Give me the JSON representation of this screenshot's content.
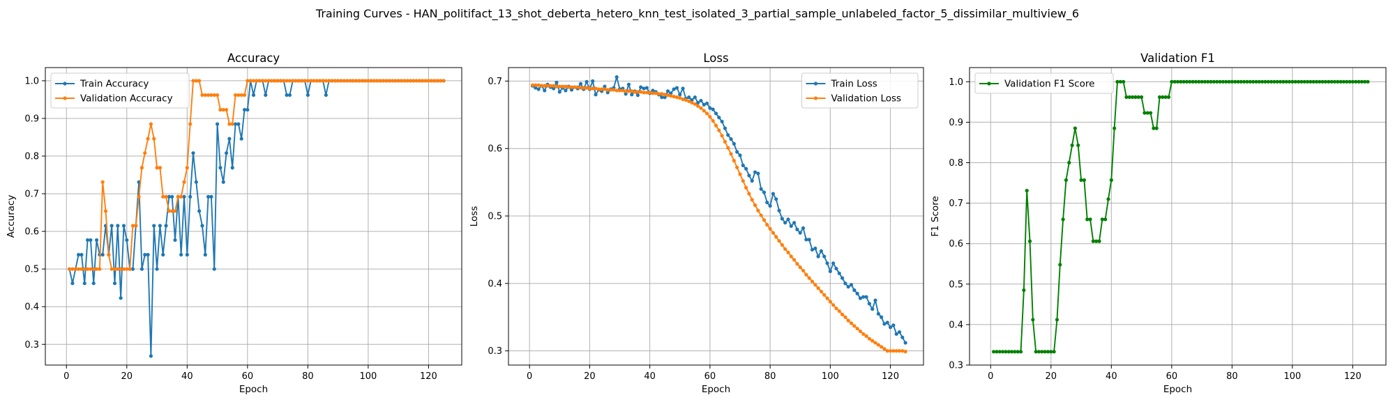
{
  "figure_title": "Training Curves - HAN_politifact_13_shot_deberta_hetero_knn_test_isolated_3_partial_sample_unlabeled_factor_5_dissimilar_multiview_6",
  "chart_data": [
    {
      "type": "line",
      "title": "Accuracy",
      "xlabel": "Epoch",
      "ylabel": "Accuracy",
      "xlim": [
        -7,
        131
      ],
      "ylim": [
        0.245,
        1.035
      ],
      "xticks": [
        0,
        20,
        40,
        60,
        80,
        100,
        120
      ],
      "yticks": [
        0.3,
        0.4,
        0.5,
        0.6,
        0.7,
        0.8,
        0.9,
        1.0
      ],
      "grid": true,
      "legend_position": "upper-left",
      "series": [
        {
          "name": "Train Accuracy",
          "color": "#1f77b4",
          "x_start": 1,
          "values": [
            0.5,
            0.462,
            0.5,
            0.538,
            0.538,
            0.462,
            0.577,
            0.577,
            0.462,
            0.577,
            0.538,
            0.538,
            0.615,
            0.538,
            0.615,
            0.462,
            0.615,
            0.423,
            0.615,
            0.577,
            0.5,
            0.5,
            0.615,
            0.731,
            0.5,
            0.538,
            0.538,
            0.269,
            0.615,
            0.5,
            0.615,
            0.538,
            0.615,
            0.692,
            0.692,
            0.577,
            0.692,
            0.538,
            0.692,
            0.538,
            0.692,
            0.808,
            0.731,
            0.654,
            0.615,
            0.538,
            0.692,
            0.692,
            0.5,
            0.885,
            0.769,
            0.731,
            0.808,
            0.846,
            0.769,
            0.885,
            0.885,
            0.846,
            0.923,
            0.923,
            1.0,
            0.962,
            1.0,
            1.0,
            1.0,
            0.962,
            1.0,
            1.0,
            1.0,
            1.0,
            1.0,
            1.0,
            0.962,
            0.962,
            1.0,
            1.0,
            1.0,
            1.0,
            1.0,
            0.962,
            1.0,
            1.0,
            1.0,
            1.0,
            1.0,
            0.962,
            1.0,
            1.0,
            1.0,
            1.0,
            1.0,
            1.0,
            1.0,
            1.0,
            1.0,
            1.0,
            1.0,
            1.0,
            1.0,
            1.0,
            1.0,
            1.0,
            1.0,
            1.0,
            1.0,
            1.0,
            1.0,
            1.0,
            1.0,
            1.0,
            1.0,
            1.0,
            1.0,
            1.0,
            1.0,
            1.0,
            1.0,
            1.0,
            1.0,
            1.0,
            1.0,
            1.0,
            1.0,
            1.0,
            1.0
          ]
        },
        {
          "name": "Validation Accuracy",
          "color": "#ff7f0e",
          "x_start": 1,
          "values": [
            0.5,
            0.5,
            0.5,
            0.5,
            0.5,
            0.5,
            0.5,
            0.5,
            0.5,
            0.5,
            0.5,
            0.731,
            0.654,
            0.538,
            0.5,
            0.5,
            0.5,
            0.5,
            0.5,
            0.5,
            0.5,
            0.615,
            0.615,
            0.692,
            0.769,
            0.808,
            0.846,
            0.885,
            0.846,
            0.769,
            0.769,
            0.692,
            0.692,
            0.654,
            0.654,
            0.654,
            0.692,
            0.692,
            0.731,
            0.769,
            0.885,
            1.0,
            1.0,
            1.0,
            0.962,
            0.962,
            0.962,
            0.962,
            0.962,
            0.962,
            0.923,
            0.923,
            0.923,
            0.885,
            0.885,
            0.962,
            0.962,
            0.962,
            0.962,
            1.0,
            1.0,
            1.0,
            1.0,
            1.0,
            1.0,
            1.0,
            1.0,
            1.0,
            1.0,
            1.0,
            1.0,
            1.0,
            1.0,
            1.0,
            1.0,
            1.0,
            1.0,
            1.0,
            1.0,
            1.0,
            1.0,
            1.0,
            1.0,
            1.0,
            1.0,
            1.0,
            1.0,
            1.0,
            1.0,
            1.0,
            1.0,
            1.0,
            1.0,
            1.0,
            1.0,
            1.0,
            1.0,
            1.0,
            1.0,
            1.0,
            1.0,
            1.0,
            1.0,
            1.0,
            1.0,
            1.0,
            1.0,
            1.0,
            1.0,
            1.0,
            1.0,
            1.0,
            1.0,
            1.0,
            1.0,
            1.0,
            1.0,
            1.0,
            1.0,
            1.0,
            1.0,
            1.0,
            1.0,
            1.0,
            1.0
          ]
        }
      ]
    },
    {
      "type": "line",
      "title": "Loss",
      "xlabel": "Epoch",
      "ylabel": "Loss",
      "xlim": [
        -7,
        131
      ],
      "ylim": [
        0.279,
        0.72
      ],
      "xticks": [
        0,
        20,
        40,
        60,
        80,
        100,
        120
      ],
      "yticks": [
        0.3,
        0.4,
        0.5,
        0.6,
        0.7
      ],
      "grid": true,
      "legend_position": "upper-right",
      "series": [
        {
          "name": "Train Loss",
          "color": "#1f77b4",
          "x_start": 1,
          "values": [
            0.693,
            0.69,
            0.688,
            0.693,
            0.686,
            0.695,
            0.691,
            0.689,
            0.698,
            0.684,
            0.69,
            0.686,
            0.692,
            0.687,
            0.691,
            0.689,
            0.696,
            0.688,
            0.699,
            0.688,
            0.7,
            0.68,
            0.687,
            0.685,
            0.692,
            0.683,
            0.688,
            0.69,
            0.706,
            0.688,
            0.689,
            0.681,
            0.695,
            0.68,
            0.685,
            0.679,
            0.691,
            0.689,
            0.69,
            0.682,
            0.686,
            0.684,
            0.68,
            0.676,
            0.676,
            0.685,
            0.682,
            0.688,
            0.69,
            0.68,
            0.689,
            0.674,
            0.676,
            0.672,
            0.676,
            0.668,
            0.671,
            0.665,
            0.667,
            0.66,
            0.658,
            0.652,
            0.646,
            0.64,
            0.63,
            0.62,
            0.614,
            0.607,
            0.595,
            0.59,
            0.575,
            0.57,
            0.56,
            0.552,
            0.565,
            0.563,
            0.54,
            0.535,
            0.52,
            0.515,
            0.533,
            0.525,
            0.508,
            0.496,
            0.49,
            0.495,
            0.485,
            0.49,
            0.48,
            0.475,
            0.482,
            0.465,
            0.465,
            0.45,
            0.452,
            0.44,
            0.448,
            0.44,
            0.43,
            0.418,
            0.43,
            0.422,
            0.415,
            0.408,
            0.4,
            0.395,
            0.398,
            0.39,
            0.385,
            0.378,
            0.38,
            0.38,
            0.37,
            0.362,
            0.375,
            0.355,
            0.35,
            0.34,
            0.342,
            0.335,
            0.338,
            0.325,
            0.328,
            0.32,
            0.312
          ]
        },
        {
          "name": "Validation Loss",
          "color": "#ff7f0e",
          "x_start": 1,
          "values": [
            0.694,
            0.694,
            0.694,
            0.693,
            0.693,
            0.693,
            0.693,
            0.693,
            0.692,
            0.692,
            0.692,
            0.692,
            0.691,
            0.691,
            0.691,
            0.691,
            0.69,
            0.69,
            0.69,
            0.689,
            0.689,
            0.689,
            0.688,
            0.688,
            0.688,
            0.687,
            0.687,
            0.687,
            0.686,
            0.686,
            0.686,
            0.685,
            0.685,
            0.685,
            0.684,
            0.684,
            0.684,
            0.683,
            0.683,
            0.683,
            0.682,
            0.682,
            0.681,
            0.681,
            0.68,
            0.679,
            0.678,
            0.677,
            0.676,
            0.675,
            0.673,
            0.672,
            0.67,
            0.668,
            0.666,
            0.663,
            0.66,
            0.656,
            0.652,
            0.647,
            0.641,
            0.634,
            0.627,
            0.619,
            0.61,
            0.601,
            0.592,
            0.582,
            0.572,
            0.562,
            0.552,
            0.542,
            0.533,
            0.524,
            0.516,
            0.508,
            0.501,
            0.494,
            0.487,
            0.481,
            0.475,
            0.469,
            0.463,
            0.457,
            0.451,
            0.446,
            0.44,
            0.435,
            0.429,
            0.424,
            0.419,
            0.413,
            0.408,
            0.403,
            0.398,
            0.393,
            0.388,
            0.383,
            0.378,
            0.373,
            0.368,
            0.363,
            0.359,
            0.354,
            0.35,
            0.345,
            0.341,
            0.337,
            0.333,
            0.329,
            0.325,
            0.322,
            0.318,
            0.315,
            0.312,
            0.309,
            0.306,
            0.303,
            0.3,
            0.3,
            0.3,
            0.3,
            0.3,
            0.3,
            0.299
          ]
        }
      ]
    },
    {
      "type": "line",
      "title": "Validation F1",
      "xlabel": "Epoch",
      "ylabel": "F1 Score",
      "xlim": [
        -7,
        131
      ],
      "ylim": [
        0.3,
        1.035
      ],
      "xticks": [
        0,
        20,
        40,
        60,
        80,
        100,
        120
      ],
      "yticks": [
        0.3,
        0.4,
        0.5,
        0.6,
        0.7,
        0.8,
        0.9,
        1.0
      ],
      "grid": true,
      "legend_position": "upper-left",
      "series": [
        {
          "name": "Validation F1 Score",
          "color": "#008000",
          "x_start": 1,
          "values": [
            0.333,
            0.333,
            0.333,
            0.333,
            0.333,
            0.333,
            0.333,
            0.333,
            0.333,
            0.333,
            0.485,
            0.731,
            0.606,
            0.412,
            0.333,
            0.333,
            0.333,
            0.333,
            0.333,
            0.333,
            0.333,
            0.412,
            0.548,
            0.66,
            0.757,
            0.8,
            0.843,
            0.885,
            0.843,
            0.757,
            0.757,
            0.66,
            0.66,
            0.606,
            0.606,
            0.606,
            0.66,
            0.66,
            0.71,
            0.757,
            0.885,
            1.0,
            1.0,
            1.0,
            0.962,
            0.962,
            0.962,
            0.962,
            0.962,
            0.962,
            0.923,
            0.923,
            0.923,
            0.885,
            0.885,
            0.962,
            0.962,
            0.962,
            0.962,
            1.0,
            1.0,
            1.0,
            1.0,
            1.0,
            1.0,
            1.0,
            1.0,
            1.0,
            1.0,
            1.0,
            1.0,
            1.0,
            1.0,
            1.0,
            1.0,
            1.0,
            1.0,
            1.0,
            1.0,
            1.0,
            1.0,
            1.0,
            1.0,
            1.0,
            1.0,
            1.0,
            1.0,
            1.0,
            1.0,
            1.0,
            1.0,
            1.0,
            1.0,
            1.0,
            1.0,
            1.0,
            1.0,
            1.0,
            1.0,
            1.0,
            1.0,
            1.0,
            1.0,
            1.0,
            1.0,
            1.0,
            1.0,
            1.0,
            1.0,
            1.0,
            1.0,
            1.0,
            1.0,
            1.0,
            1.0,
            1.0,
            1.0,
            1.0,
            1.0,
            1.0,
            1.0,
            1.0,
            1.0,
            1.0,
            1.0
          ]
        }
      ]
    }
  ]
}
